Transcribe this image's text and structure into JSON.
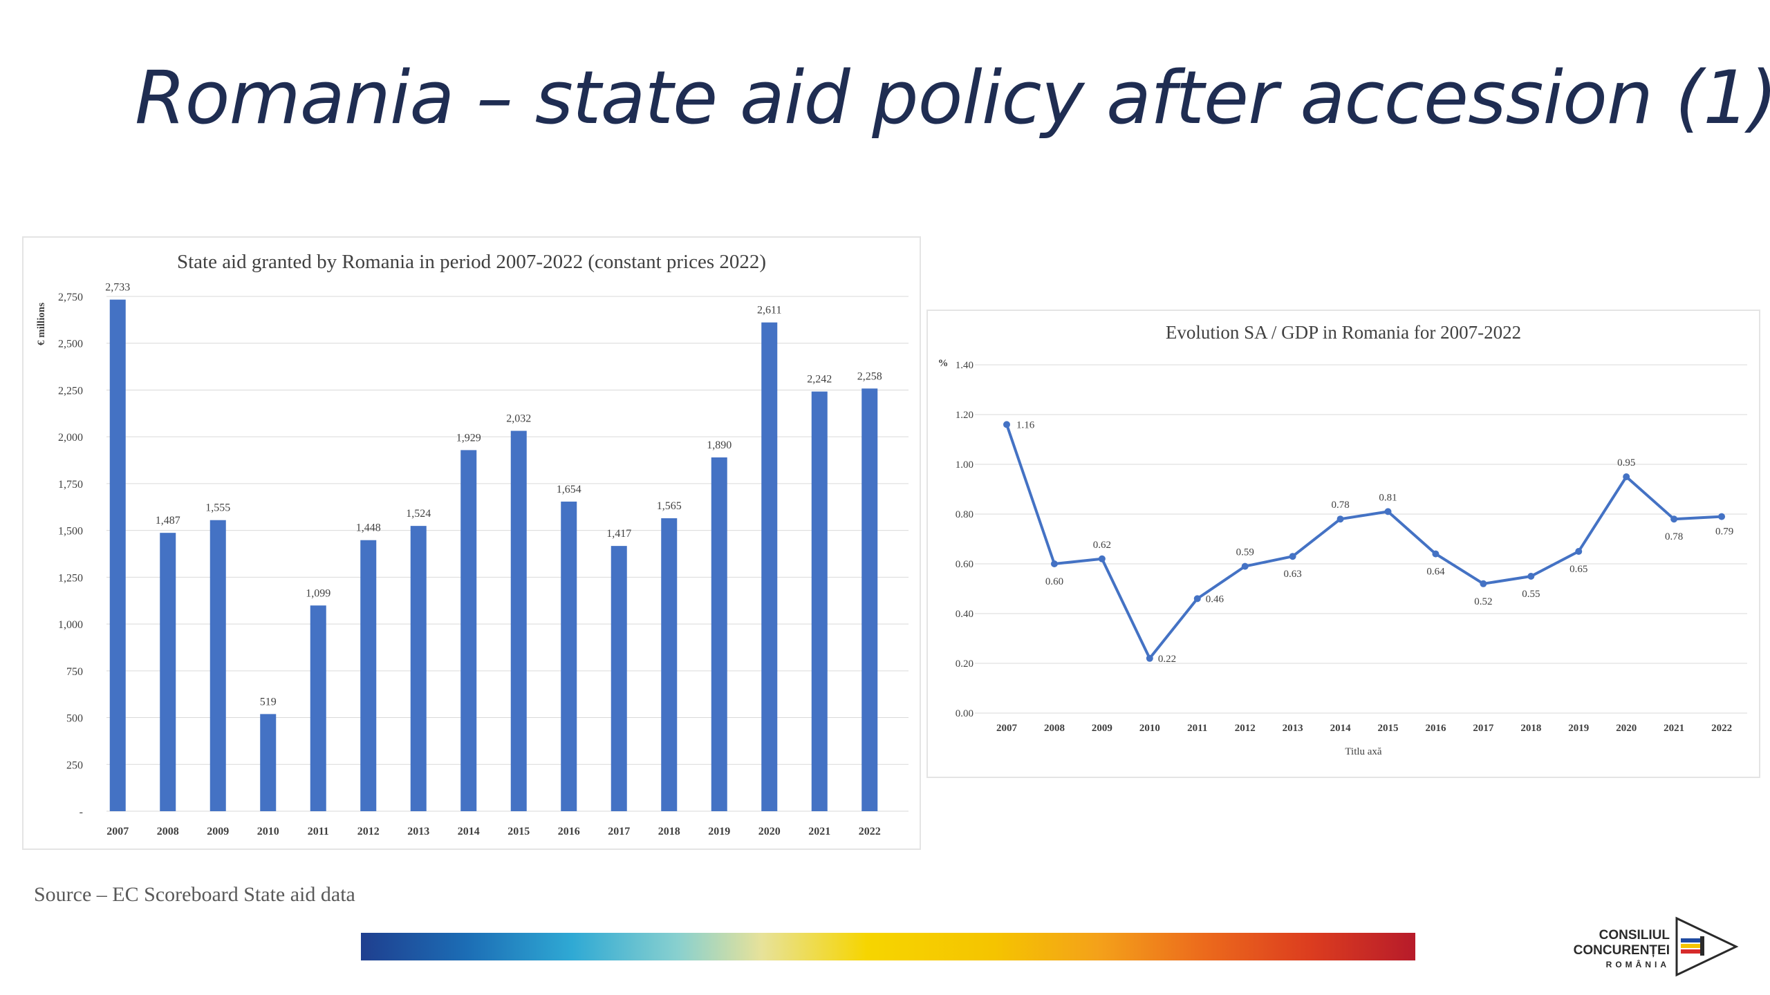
{
  "slide": {
    "title": "Romania – state aid policy after accession (1)",
    "source": "Source – EC Scoreboard State aid data",
    "logo": {
      "line1": "CONSILIUL",
      "line2": "CONCURENȚEI",
      "line3": "ROMÂNIA"
    }
  },
  "chart_data": [
    {
      "type": "bar",
      "title": "State aid granted by Romania in period 2007-2022 (constant prices 2022)",
      "ylabel": "€ millions",
      "xlabel": "",
      "categories": [
        "2007",
        "2008",
        "2009",
        "2010",
        "2011",
        "2012",
        "2013",
        "2014",
        "2015",
        "2016",
        "2017",
        "2018",
        "2019",
        "2020",
        "2021",
        "2022"
      ],
      "values": [
        2733,
        1487,
        1555,
        519,
        1099,
        1448,
        1524,
        1929,
        2032,
        1654,
        1417,
        1565,
        1890,
        2611,
        2242,
        2258
      ],
      "value_labels": [
        "2,733",
        "1,487",
        "1,555",
        "519",
        "1,099",
        "1,448",
        "1,524",
        "1,929",
        "2,032",
        "1,654",
        "1,417",
        "1,565",
        "1,890",
        "2,611",
        "2,242",
        "2,258"
      ],
      "yticks": [
        0,
        250,
        500,
        750,
        1000,
        1250,
        1500,
        1750,
        2000,
        2250,
        2500,
        2750
      ],
      "ytick_labels": [
        "-",
        "250",
        "500",
        "750",
        "1,000",
        "1,250",
        "1,500",
        "1,750",
        "2,000",
        "2,250",
        "2,500",
        "2,750"
      ],
      "ylim": [
        0,
        2750
      ],
      "grid": true,
      "color": "#4472c4"
    },
    {
      "type": "line",
      "title": "Evolution SA / GDP in Romania for 2007-2022",
      "ylabel": "%",
      "xlabel": "Titlu axă",
      "x": [
        "2007",
        "2008",
        "2009",
        "2010",
        "2011",
        "2012",
        "2013",
        "2014",
        "2015",
        "2016",
        "2017",
        "2018",
        "2019",
        "2020",
        "2021",
        "2022"
      ],
      "values": [
        1.16,
        0.6,
        0.62,
        0.22,
        0.46,
        0.59,
        0.63,
        0.78,
        0.81,
        0.64,
        0.52,
        0.55,
        0.65,
        0.95,
        0.78,
        0.79
      ],
      "value_labels": [
        "1.16",
        "0.60",
        "0.62",
        "0.22",
        "0.46",
        "0.59",
        "0.63",
        "0.78",
        "0.81",
        "0.64",
        "0.52",
        "0.55",
        "0.65",
        "0.95",
        "0.78",
        "0.79"
      ],
      "yticks": [
        0,
        0.2,
        0.4,
        0.6,
        0.8,
        1.0,
        1.2,
        1.4
      ],
      "ytick_labels": [
        "0.00",
        "0.20",
        "0.40",
        "0.60",
        "0.80",
        "1.00",
        "1.20",
        "1.40"
      ],
      "ylim": [
        0,
        1.4
      ],
      "grid": true,
      "color": "#4472c4"
    }
  ]
}
